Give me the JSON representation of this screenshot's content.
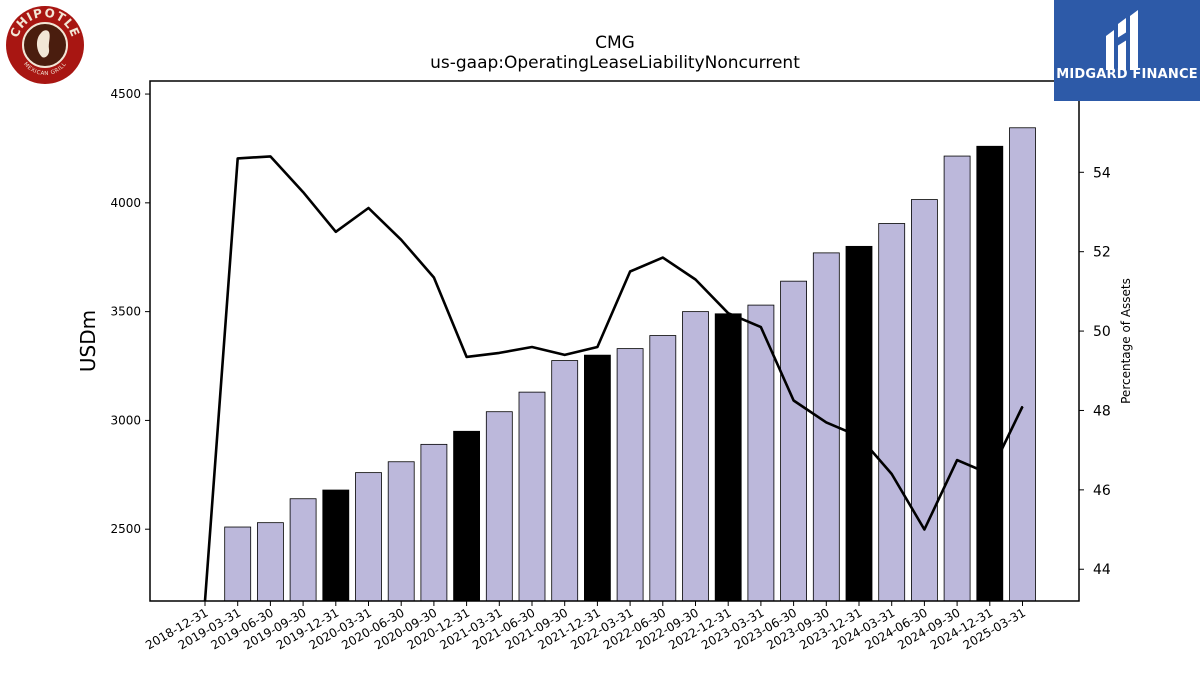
{
  "header": {
    "ticker": "CMG",
    "metric": "us-gaap:OperatingLeaseLiabilityNoncurrent"
  },
  "logos": {
    "left": {
      "name": "chipotle-logo",
      "text_top": "CHIPOTLE",
      "text_bottom": "MEXICAN GRILL",
      "color": "#a81612"
    },
    "right": {
      "name": "midgard-finance-logo",
      "text": "MIDGARD FINANCE",
      "color": "#2d5aa8"
    }
  },
  "chart_data": {
    "type": "bar",
    "title": "CMG",
    "subtitle": "us-gaap:OperatingLeaseLiabilityNoncurrent",
    "ylabel": "USDm",
    "y2label": "Percentage of Assets",
    "ylim": [
      2170,
      4560
    ],
    "y2lim": [
      43.2,
      56.3
    ],
    "yticks": [
      2500,
      3000,
      3500,
      4000,
      4500
    ],
    "y2ticks": [
      44,
      46,
      48,
      50,
      52,
      54
    ],
    "categories": [
      "2018-12-31",
      "2019-03-31",
      "2019-06-30",
      "2019-09-30",
      "2019-12-31",
      "2020-03-31",
      "2020-06-30",
      "2020-09-30",
      "2020-12-31",
      "2021-03-31",
      "2021-06-30",
      "2021-09-30",
      "2021-12-31",
      "2022-03-31",
      "2022-06-30",
      "2022-09-30",
      "2022-12-31",
      "2023-03-31",
      "2023-06-30",
      "2023-09-30",
      "2023-12-31",
      "2024-03-31",
      "2024-06-30",
      "2024-09-30",
      "2024-12-31",
      "2025-03-31"
    ],
    "series": [
      {
        "axis": "left",
        "kind": "bar",
        "values": [
          null,
          2510,
          2530,
          2640,
          2680,
          2760,
          2810,
          2890,
          2950,
          3040,
          3130,
          3275,
          3300,
          3330,
          3390,
          3500,
          3490,
          3530,
          3640,
          3770,
          3800,
          3905,
          4015,
          4215,
          4260,
          4345
        ],
        "highlight": [
          false,
          false,
          false,
          false,
          true,
          false,
          false,
          false,
          true,
          false,
          false,
          false,
          true,
          false,
          false,
          false,
          true,
          false,
          false,
          false,
          true,
          false,
          false,
          false,
          true,
          false
        ],
        "colors": {
          "normal": "#bcb8db",
          "highlight": "#000000"
        }
      },
      {
        "axis": "right",
        "kind": "line",
        "values": [
          43.0,
          54.35,
          54.4,
          53.5,
          52.5,
          53.1,
          52.3,
          51.35,
          49.35,
          49.45,
          49.6,
          49.4,
          49.6,
          51.5,
          51.85,
          51.3,
          50.45,
          50.1,
          48.25,
          47.7,
          47.35,
          46.4,
          45.0,
          46.75,
          46.4,
          48.1
        ],
        "color": "#000000"
      }
    ],
    "grid": false,
    "legend": "none"
  }
}
